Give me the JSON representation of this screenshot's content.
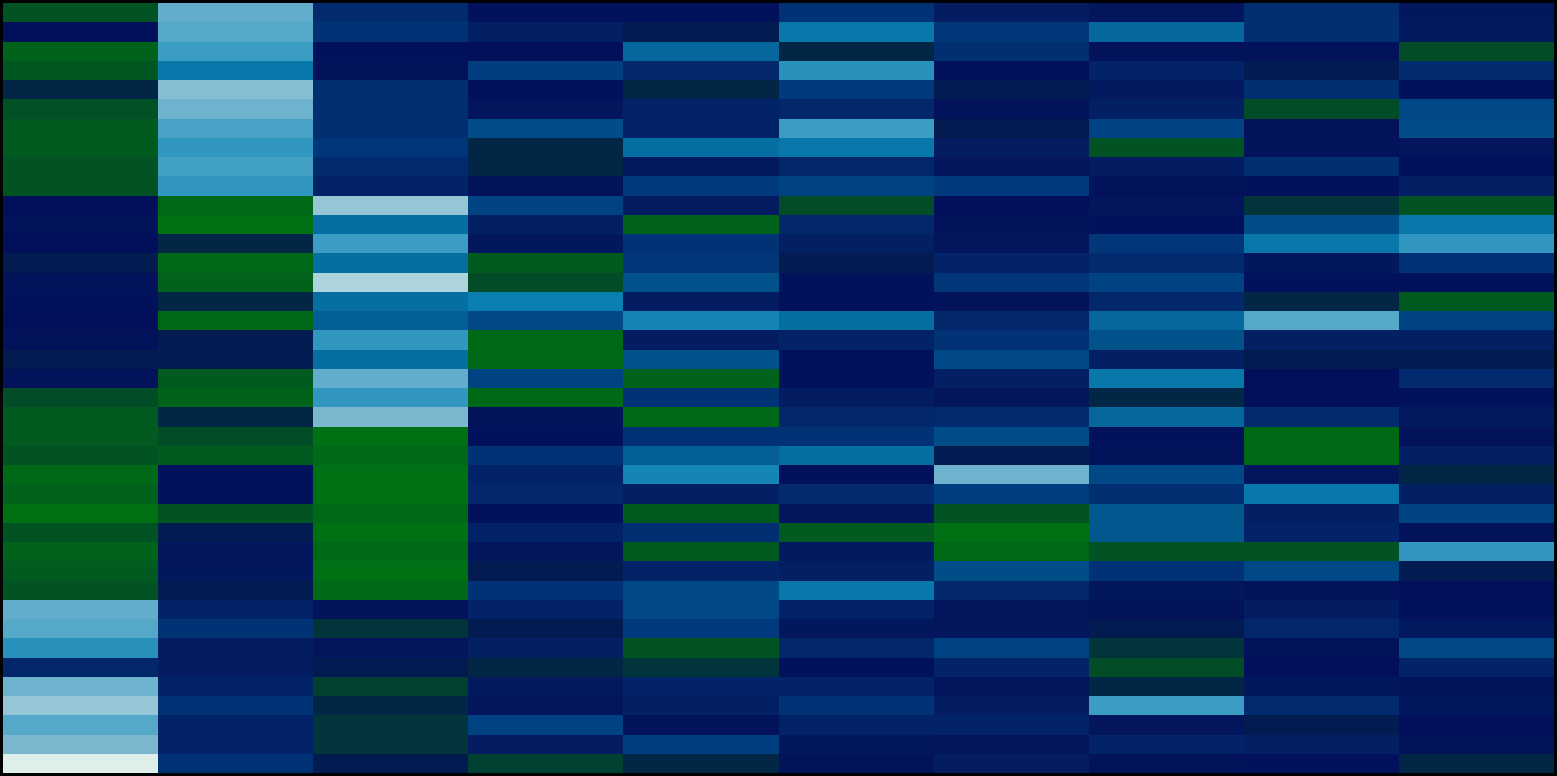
{
  "chart_data": {
    "type": "heatmap",
    "rows": 40,
    "cols": 10,
    "colormap": [
      "#f7fcf0",
      "#7bb8cf",
      "#3c9dc4",
      "#0a7fb0",
      "#01578e",
      "#003e80",
      "#022a6e",
      "#03195f",
      "#020f5a",
      "#024c28",
      "#007014"
    ],
    "background": "#000000",
    "value_range": [
      0,
      10
    ],
    "values": [
      [
        9.2,
        1.4,
        6.0,
        7.8,
        7.8,
        5.6,
        6.8,
        7.4,
        5.8,
        7.2
      ],
      [
        8.0,
        1.6,
        5.6,
        6.6,
        8.2,
        3.2,
        5.4,
        3.6,
        5.8,
        7.0
      ],
      [
        9.6,
        2.0,
        7.8,
        8.0,
        3.6,
        8.4,
        5.8,
        7.6,
        7.6,
        9.0
      ],
      [
        9.3,
        3.2,
        7.6,
        5.0,
        6.2,
        2.4,
        7.8,
        6.4,
        8.2,
        6.0
      ],
      [
        8.4,
        0.9,
        5.8,
        7.8,
        8.4,
        5.2,
        8.2,
        7.0,
        5.8,
        7.8
      ],
      [
        9.1,
        1.2,
        5.8,
        7.4,
        6.4,
        6.2,
        7.6,
        6.6,
        9.0,
        4.6
      ],
      [
        9.4,
        1.8,
        5.8,
        4.4,
        6.4,
        2.0,
        8.2,
        4.8,
        7.6,
        4.4
      ],
      [
        9.4,
        2.2,
        5.4,
        8.4,
        3.4,
        3.2,
        6.8,
        9.2,
        7.6,
        7.4
      ],
      [
        9.2,
        1.9,
        6.0,
        8.4,
        7.0,
        6.2,
        7.4,
        6.8,
        5.8,
        7.8
      ],
      [
        9.2,
        2.2,
        6.4,
        7.6,
        5.2,
        4.8,
        5.2,
        7.6,
        7.8,
        6.6
      ],
      [
        8.0,
        9.8,
        0.8,
        4.8,
        6.8,
        9.0,
        8.0,
        7.4,
        8.6,
        9.2
      ],
      [
        7.6,
        10.0,
        3.4,
        6.6,
        9.6,
        6.2,
        7.6,
        7.8,
        4.4,
        3.2
      ],
      [
        8.0,
        8.4,
        2.0,
        7.2,
        5.6,
        6.6,
        7.4,
        5.4,
        3.2,
        2.2
      ],
      [
        8.2,
        9.8,
        3.4,
        9.4,
        5.4,
        8.2,
        6.4,
        6.0,
        7.2,
        5.6
      ],
      [
        7.6,
        9.6,
        0.6,
        9.0,
        4.2,
        7.8,
        5.4,
        4.8,
        7.8,
        7.8
      ],
      [
        7.8,
        8.4,
        3.4,
        3.0,
        6.8,
        7.8,
        7.6,
        6.2,
        8.4,
        9.4
      ],
      [
        8.0,
        9.8,
        3.8,
        4.6,
        2.8,
        3.4,
        6.2,
        3.6,
        1.6,
        4.8
      ],
      [
        7.6,
        8.2,
        2.2,
        9.8,
        6.8,
        6.4,
        5.6,
        4.2,
        6.6,
        6.6
      ],
      [
        8.2,
        8.2,
        3.4,
        9.8,
        4.2,
        7.8,
        4.6,
        6.6,
        8.2,
        8.2
      ],
      [
        7.6,
        9.4,
        1.4,
        4.8,
        9.6,
        7.8,
        6.6,
        3.2,
        8.0,
        6.0
      ],
      [
        9.0,
        9.6,
        2.2,
        9.8,
        5.6,
        6.8,
        7.4,
        8.4,
        8.0,
        7.8
      ],
      [
        9.4,
        8.4,
        1.0,
        7.6,
        9.8,
        6.2,
        6.0,
        3.6,
        6.0,
        7.0
      ],
      [
        9.4,
        9.0,
        10.4,
        7.8,
        5.6,
        5.6,
        4.4,
        7.8,
        9.8,
        7.6
      ],
      [
        9.2,
        9.4,
        9.8,
        5.6,
        3.8,
        3.4,
        8.2,
        7.6,
        9.8,
        6.6
      ],
      [
        9.8,
        7.8,
        10.6,
        6.4,
        2.8,
        7.8,
        1.2,
        4.6,
        7.4,
        8.4
      ],
      [
        9.6,
        7.8,
        10.0,
        6.2,
        6.6,
        6.0,
        5.0,
        5.8,
        3.2,
        6.6
      ],
      [
        10.0,
        9.2,
        9.8,
        7.8,
        9.4,
        7.4,
        9.2,
        4.0,
        6.6,
        4.8
      ],
      [
        9.2,
        8.2,
        10.4,
        6.4,
        5.8,
        9.4,
        10.0,
        4.0,
        6.4,
        7.6
      ],
      [
        9.6,
        7.4,
        9.8,
        7.4,
        9.4,
        7.0,
        9.8,
        9.2,
        9.2,
        2.2
      ],
      [
        9.4,
        7.2,
        10.2,
        8.2,
        6.4,
        6.6,
        4.4,
        5.6,
        4.6,
        8.2
      ],
      [
        9.2,
        8.2,
        9.8,
        5.6,
        4.6,
        3.2,
        6.2,
        7.2,
        7.6,
        8.0
      ],
      [
        1.4,
        6.4,
        7.6,
        6.4,
        4.6,
        6.4,
        7.4,
        7.6,
        6.8,
        7.8
      ],
      [
        1.6,
        5.6,
        8.6,
        8.2,
        5.2,
        7.2,
        7.4,
        8.2,
        6.2,
        7.0
      ],
      [
        2.4,
        6.8,
        7.4,
        6.6,
        9.2,
        6.2,
        4.8,
        8.6,
        7.6,
        4.6
      ],
      [
        6.2,
        6.8,
        8.2,
        8.4,
        8.6,
        7.8,
        6.4,
        9.0,
        8.0,
        6.4
      ],
      [
        1.2,
        6.4,
        8.8,
        7.0,
        6.4,
        6.4,
        7.4,
        8.4,
        7.2,
        7.6
      ],
      [
        0.8,
        5.6,
        8.4,
        7.4,
        6.6,
        5.6,
        6.8,
        2.0,
        6.0,
        7.2
      ],
      [
        1.6,
        6.4,
        8.6,
        4.8,
        7.6,
        6.4,
        6.4,
        7.4,
        8.2,
        8.0
      ],
      [
        1.0,
        6.4,
        8.6,
        6.8,
        5.0,
        7.2,
        7.4,
        6.4,
        6.6,
        7.6
      ],
      [
        0.2,
        5.6,
        8.2,
        8.8,
        8.4,
        7.6,
        6.8,
        7.6,
        7.8,
        8.4
      ]
    ]
  }
}
